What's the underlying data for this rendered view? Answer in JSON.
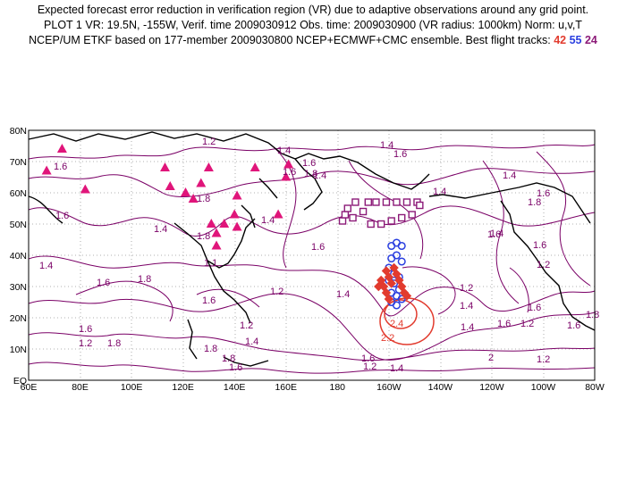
{
  "header": {
    "line1": "Expected forecast error reduction in verification region (VR) due to adaptive observations around any grid point.",
    "line2": "PLOT 1 VR: 19.5N, -155W, Verif. time 2009030912 Obs. time: 2009030900 (VR radius: 1000km) Norm: u,v,T",
    "line3_prefix": "NCEP/UM ETKF based on 177-member 2009030800 NCEP+ECMWF+CMC ensemble. Best flight tracks:",
    "track_numbers": [
      "42",
      "55",
      "24"
    ]
  },
  "colors": {
    "contour": "#7a0066",
    "track_42": "#e23b2e",
    "track_55": "#2a3fe0",
    "track_24": "#8c1a78",
    "triangles": "#e0157a",
    "coast": "#000000",
    "grid": "#999999"
  },
  "axes": {
    "x_ticks": [
      "60E",
      "80E",
      "100E",
      "120E",
      "140E",
      "160E",
      "180",
      "160W",
      "140W",
      "120W",
      "100W",
      "80W"
    ],
    "y_ticks": [
      "EQ",
      "10N",
      "20N",
      "30N",
      "40N",
      "50N",
      "60N",
      "70N",
      "80N"
    ]
  },
  "contour_labels": [
    "1.2",
    "1.4",
    "1.6",
    "1.8",
    "1.6",
    "1.4",
    "1.4",
    "1.6",
    "1.6",
    "1.4",
    "1.6",
    "1.4",
    "1.6",
    "1.4",
    "1.8",
    "1.8",
    "1.6",
    "1.4",
    "1.6",
    "1.8",
    "1.6",
    "1.2",
    "1.4",
    "1.2",
    "1.4",
    "1.6",
    "1.2",
    "1.4",
    "1.6",
    "1.8",
    "1.6",
    "1.2",
    "1.6",
    "1.8",
    "1.4",
    "1.2",
    "1.6",
    "1.4",
    "1.2",
    "1.6",
    "1.8",
    "2",
    "1.8",
    "1.2",
    "1.4",
    "1.1",
    "1.2",
    "1.6",
    "1.8",
    "1.6",
    "1.4"
  ],
  "red_labels": [
    "2.2",
    "2.4"
  ],
  "map_data": {
    "triangles": [
      [
        67,
        67
      ],
      [
        73,
        74
      ],
      [
        82,
        61
      ],
      [
        113,
        68
      ],
      [
        115,
        62
      ],
      [
        121,
        60
      ],
      [
        124,
        58
      ],
      [
        127,
        63
      ],
      [
        130,
        68
      ],
      [
        131,
        50
      ],
      [
        133,
        47
      ],
      [
        133,
        43
      ],
      [
        136,
        50
      ],
      [
        140,
        53
      ],
      [
        141,
        49
      ],
      [
        141,
        59
      ],
      [
        148,
        68
      ],
      [
        157,
        53
      ],
      [
        160,
        65
      ],
      [
        161,
        69
      ]
    ],
    "track_24": [
      [
        182,
        51
      ],
      [
        183,
        53
      ],
      [
        184,
        55
      ],
      [
        186,
        52
      ],
      [
        187,
        57
      ],
      [
        190,
        54
      ],
      [
        192,
        57
      ],
      [
        193,
        50
      ],
      [
        195,
        57
      ],
      [
        197,
        50
      ],
      [
        199,
        57
      ],
      [
        201,
        51
      ],
      [
        203,
        57
      ],
      [
        205,
        52
      ],
      [
        207,
        57
      ],
      [
        209,
        53
      ],
      [
        211,
        57
      ],
      [
        212,
        56
      ]
    ],
    "track_55": [
      [
        201,
        43
      ],
      [
        203,
        44
      ],
      [
        205,
        43
      ],
      [
        201,
        39
      ],
      [
        203,
        40
      ],
      [
        205,
        38
      ],
      [
        200,
        36
      ],
      [
        202,
        34
      ],
      [
        204,
        33
      ],
      [
        200,
        32
      ],
      [
        202,
        31
      ],
      [
        204,
        29
      ],
      [
        201,
        28
      ],
      [
        203,
        27
      ],
      [
        205,
        26
      ],
      [
        201,
        25
      ],
      [
        203,
        24
      ]
    ],
    "track_42": [
      [
        199,
        35
      ],
      [
        200,
        33
      ],
      [
        201,
        31
      ],
      [
        198,
        30
      ],
      [
        199,
        28
      ],
      [
        200,
        26
      ],
      [
        202,
        36
      ],
      [
        203,
        34
      ],
      [
        204,
        32
      ],
      [
        205,
        30
      ],
      [
        206,
        28
      ],
      [
        207,
        27
      ],
      [
        197,
        32
      ],
      [
        196,
        30
      ]
    ]
  }
}
